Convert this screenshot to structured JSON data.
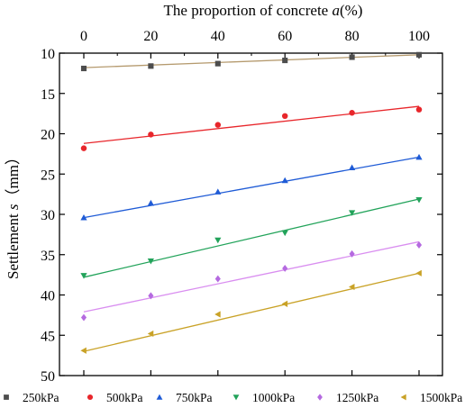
{
  "chart_data": {
    "type": "scatter",
    "title": "",
    "xlabel": "The proportion of concrete a(%)",
    "xlabel_parts": {
      "pre": "The proportion of concrete ",
      "var": "a",
      "post": "(%)"
    },
    "ylabel": "Settlement s（mm）",
    "ylabel_parts": {
      "pre": "Settlement ",
      "var": "s",
      "post": "（mm）"
    },
    "x_axis_position": "top",
    "y_axis_reversed": true,
    "xlim": [
      0,
      100
    ],
    "ylim": [
      10,
      50
    ],
    "xticks": [
      0,
      20,
      40,
      60,
      80,
      100
    ],
    "yticks": [
      10,
      15,
      20,
      25,
      30,
      35,
      40,
      45,
      50
    ],
    "legend_position": "bottom",
    "grid": false,
    "x": [
      0,
      20,
      40,
      60,
      80,
      100
    ],
    "series": [
      {
        "name": "250kPa",
        "marker": "square",
        "color": "#4d4d4d",
        "line_color": "#b59a6e",
        "values": [
          11.9,
          11.6,
          11.3,
          10.9,
          10.5,
          10.2
        ],
        "fit": [
          11.8,
          10.2
        ]
      },
      {
        "name": "500kPa",
        "marker": "circle",
        "color": "#e8262b",
        "line_color": "#e8262b",
        "values": [
          21.8,
          20.1,
          18.9,
          17.8,
          17.4,
          17.0
        ],
        "fit": [
          21.2,
          16.6
        ]
      },
      {
        "name": "750kPa",
        "marker": "triangle-up",
        "color": "#1f5bd6",
        "line_color": "#1f5bd6",
        "values": [
          30.4,
          28.6,
          27.2,
          25.8,
          24.2,
          22.9
        ],
        "fit": [
          30.4,
          22.9
        ]
      },
      {
        "name": "1000kPa",
        "marker": "triangle-down",
        "color": "#22a35a",
        "line_color": "#22a35a",
        "values": [
          37.6,
          35.8,
          33.2,
          32.3,
          29.8,
          28.2
        ],
        "fit": [
          37.8,
          28.1
        ]
      },
      {
        "name": "1250kPa",
        "marker": "diamond",
        "color": "#b56ae0",
        "line_color": "#d98ef0",
        "values": [
          42.8,
          40.1,
          38.0,
          36.7,
          34.9,
          33.8
        ],
        "fit": [
          42.1,
          33.4
        ]
      },
      {
        "name": "1500kPa",
        "marker": "triangle-left",
        "color": "#c9a227",
        "line_color": "#c9a227",
        "values": [
          46.9,
          44.8,
          42.4,
          41.1,
          39.0,
          37.3
        ],
        "fit": [
          47.0,
          37.3
        ]
      }
    ]
  }
}
